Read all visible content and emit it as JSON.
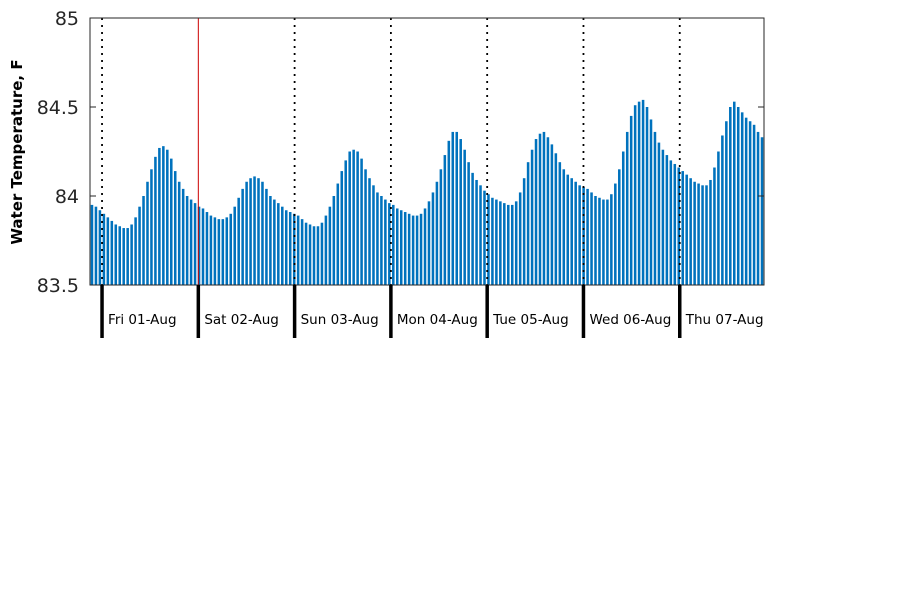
{
  "chart_data": {
    "type": "bar",
    "ylabel": "Water Temperature, F",
    "xlabel": "",
    "ylim": [
      83.5,
      85
    ],
    "yticks": [
      "83.5",
      "84",
      "84.5",
      "85"
    ],
    "x_unit": "hours since Thu 31-Jul 21:00",
    "x_range": [
      0,
      168
    ],
    "day_labels": [
      {
        "label": "Fri 01-Aug",
        "at": 3
      },
      {
        "label": "Sat 02-Aug",
        "at": 27
      },
      {
        "label": "Sun 03-Aug",
        "at": 51
      },
      {
        "label": "Mon 04-Aug",
        "at": 75
      },
      {
        "label": "Tue 05-Aug",
        "at": 99
      },
      {
        "label": "Wed 06-Aug",
        "at": 123
      },
      {
        "label": "Thu 07-Aug",
        "at": 147
      }
    ],
    "midnight_lines": [
      3,
      27,
      51,
      75,
      99,
      123,
      147
    ],
    "current_time_marker": 27,
    "colors": {
      "bars": "#0072BD",
      "marker": "#cc0000"
    },
    "series": [
      {
        "values": [
          83.95,
          83.94,
          83.92,
          83.9,
          83.88,
          83.86,
          83.84,
          83.83,
          83.82,
          83.82,
          83.84,
          83.88,
          83.94,
          84.0,
          84.08,
          84.15,
          84.22,
          84.27,
          84.28,
          84.26,
          84.21,
          84.14,
          84.08,
          84.04,
          84.0,
          83.98,
          83.96,
          83.94,
          83.93,
          83.91,
          83.89,
          83.88,
          83.87,
          83.87,
          83.88,
          83.9,
          83.94,
          83.99,
          84.04,
          84.08,
          84.1,
          84.11,
          84.1,
          84.08,
          84.04,
          84.0,
          83.98,
          83.96,
          83.94,
          83.92,
          83.91,
          83.9,
          83.89,
          83.87,
          83.85,
          83.84,
          83.83,
          83.83,
          83.85,
          83.89,
          83.94,
          84.0,
          84.07,
          84.14,
          84.2,
          84.25,
          84.26,
          84.25,
          84.21,
          84.15,
          84.1,
          84.06,
          84.02,
          84.0,
          83.98,
          83.96,
          83.95,
          83.93,
          83.92,
          83.91,
          83.9,
          83.89,
          83.89,
          83.9,
          83.93,
          83.97,
          84.02,
          84.08,
          84.15,
          84.23,
          84.31,
          84.36,
          84.36,
          84.32,
          84.26,
          84.19,
          84.13,
          84.09,
          84.06,
          84.03,
          84.01,
          83.99,
          83.98,
          83.97,
          83.96,
          83.95,
          83.95,
          83.97,
          84.02,
          84.1,
          84.19,
          84.26,
          84.32,
          84.35,
          84.36,
          84.33,
          84.29,
          84.24,
          84.19,
          84.15,
          84.12,
          84.1,
          84.08,
          84.06,
          84.05,
          84.04,
          84.02,
          84.0,
          83.99,
          83.98,
          83.98,
          84.01,
          84.07,
          84.15,
          84.25,
          84.36,
          84.45,
          84.51,
          84.53,
          84.54,
          84.5,
          84.43,
          84.36,
          84.3,
          84.26,
          84.23,
          84.2,
          84.18,
          84.16,
          84.14,
          84.12,
          84.1,
          84.08,
          84.07,
          84.06,
          84.06,
          84.09,
          84.16,
          84.25,
          84.34,
          84.42,
          84.5,
          84.53,
          84.5,
          84.47,
          84.44,
          84.42,
          84.4,
          84.36,
          84.33
        ]
      }
    ]
  }
}
